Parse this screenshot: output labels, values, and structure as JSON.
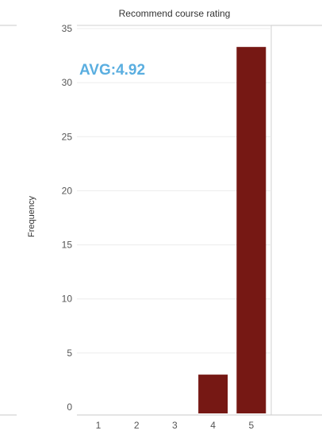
{
  "chart_data": {
    "type": "bar",
    "title": "Recommend course rating",
    "xlabel": "",
    "ylabel": "Frequency",
    "categories": [
      "1",
      "2",
      "3",
      "4",
      "5"
    ],
    "values": [
      0,
      0,
      0,
      3,
      33.3
    ],
    "ylim": [
      0,
      35
    ],
    "yticks": [
      0,
      5,
      10,
      15,
      20,
      25,
      30,
      35
    ],
    "annotation": "AVG:4.92",
    "grid": true,
    "legend": "none",
    "bar_color": "#761814",
    "annotation_color": "#5aaee0"
  }
}
